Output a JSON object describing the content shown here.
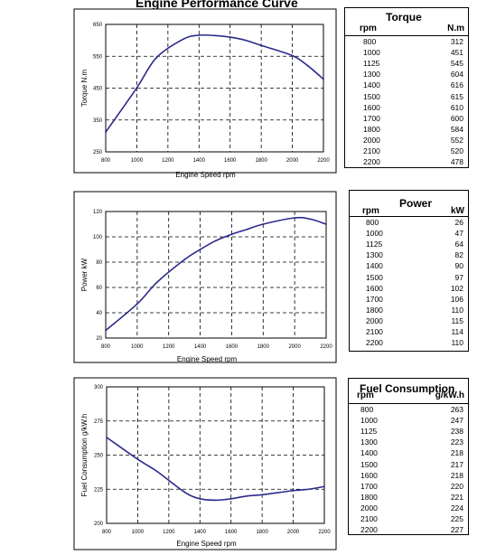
{
  "page_title": "Engine Performance Curve",
  "chart_data": [
    {
      "type": "line",
      "xlabel": "Engine Speed rpm",
      "ylabel": "Torque N.m",
      "xlim": [
        800,
        2200
      ],
      "ylim": [
        250,
        650
      ],
      "xticks": [
        800,
        1000,
        1200,
        1400,
        1600,
        1800,
        2000,
        2200
      ],
      "yticks": [
        250,
        350,
        450,
        550,
        650
      ],
      "grid": true,
      "series": [
        {
          "x": [
            800,
            1000,
            1125,
            1300,
            1400,
            1500,
            1600,
            1700,
            1800,
            2000,
            2100,
            2200
          ],
          "y": [
            312,
            451,
            545,
            604,
            616,
            615,
            610,
            600,
            584,
            552,
            520,
            478
          ]
        }
      ]
    },
    {
      "type": "line",
      "xlabel": "Engine Speed rpm",
      "ylabel": "Power kW",
      "xlim": [
        800,
        2200
      ],
      "ylim": [
        20,
        120
      ],
      "xticks": [
        800,
        1000,
        1200,
        1400,
        1600,
        1800,
        2000,
        2200
      ],
      "yticks": [
        20,
        40,
        60,
        80,
        100,
        120
      ],
      "grid": true,
      "series": [
        {
          "x": [
            800,
            1000,
            1125,
            1300,
            1400,
            1500,
            1600,
            1700,
            1800,
            2000,
            2100,
            2200
          ],
          "y": [
            26,
            47,
            64,
            82,
            90,
            97,
            102,
            106,
            110,
            115,
            114,
            110
          ]
        }
      ]
    },
    {
      "type": "line",
      "xlabel": "Engine Speed rpm",
      "ylabel": "Fuel Consumption g/kW.h",
      "xlim": [
        800,
        2200
      ],
      "ylim": [
        200,
        300
      ],
      "xticks": [
        800,
        1000,
        1200,
        1400,
        1600,
        1800,
        2000,
        2200
      ],
      "yticks": [
        200,
        225,
        250,
        275,
        300
      ],
      "grid": true,
      "series": [
        {
          "x": [
            800,
            1000,
            1125,
            1300,
            1400,
            1500,
            1600,
            1700,
            1800,
            2000,
            2100,
            2200
          ],
          "y": [
            263,
            247,
            238,
            223,
            218,
            217,
            218,
            220,
            221,
            224,
            225,
            227
          ]
        }
      ]
    }
  ],
  "tables": [
    {
      "title": "Torque",
      "col1": "rpm",
      "col2": "N.m",
      "rows": [
        [
          "800",
          "312"
        ],
        [
          "1000",
          "451"
        ],
        [
          "1125",
          "545"
        ],
        [
          "1300",
          "604"
        ],
        [
          "1400",
          "616"
        ],
        [
          "1500",
          "615"
        ],
        [
          "1600",
          "610"
        ],
        [
          "1700",
          "600"
        ],
        [
          "1800",
          "584"
        ],
        [
          "2000",
          "552"
        ],
        [
          "2100",
          "520"
        ],
        [
          "2200",
          "478"
        ]
      ]
    },
    {
      "title": "Power",
      "col1": "rpm",
      "col2": "kW",
      "rows": [
        [
          "800",
          "26"
        ],
        [
          "1000",
          "47"
        ],
        [
          "1125",
          "64"
        ],
        [
          "1300",
          "82"
        ],
        [
          "1400",
          "90"
        ],
        [
          "1500",
          "97"
        ],
        [
          "1600",
          "102"
        ],
        [
          "1700",
          "106"
        ],
        [
          "1800",
          "110"
        ],
        [
          "2000",
          "115"
        ],
        [
          "2100",
          "114"
        ],
        [
          "2200",
          "110"
        ]
      ]
    },
    {
      "title": "Fuel Consumption",
      "col1": "rpm",
      "col2": "g/kW.h",
      "rows": [
        [
          "800",
          "263"
        ],
        [
          "1000",
          "247"
        ],
        [
          "1125",
          "238"
        ],
        [
          "1300",
          "223"
        ],
        [
          "1400",
          "218"
        ],
        [
          "1500",
          "217"
        ],
        [
          "1600",
          "218"
        ],
        [
          "1700",
          "220"
        ],
        [
          "1800",
          "221"
        ],
        [
          "2000",
          "224"
        ],
        [
          "2100",
          "225"
        ],
        [
          "2200",
          "227"
        ]
      ]
    }
  ],
  "colors": {
    "line": "#2b2a8c",
    "grid": "#000000"
  }
}
